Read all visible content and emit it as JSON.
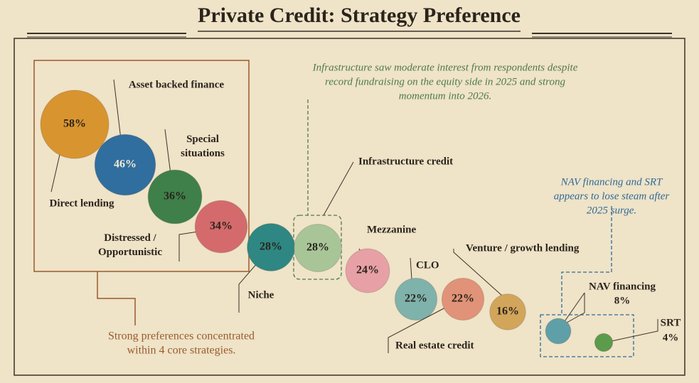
{
  "chart_data": {
    "type": "bubble",
    "title": "Private Credit: Strategy Preference",
    "categories": [
      "Direct lending",
      "Asset backed finance",
      "Special situations",
      "Distressed / Opportunistic",
      "Niche",
      "Infrastructure credit",
      "Mezzanine",
      "CLO",
      "Real estate credit",
      "Venture / growth lending",
      "NAV financing",
      "SRT"
    ],
    "values": [
      58,
      46,
      36,
      34,
      28,
      28,
      24,
      22,
      22,
      16,
      8,
      4
    ],
    "value_labels": [
      "58%",
      "46%",
      "36%",
      "34%",
      "28%",
      "28%",
      "24%",
      "22%",
      "22%",
      "16%",
      "8%",
      "4%"
    ],
    "colors": [
      "#d8942f",
      "#2f6e9e",
      "#3e7f4a",
      "#d46a6c",
      "#2e8782",
      "#a8c598",
      "#e6a0a6",
      "#7eb2ab",
      "#e09378",
      "#d2a55b",
      "#5f9fa8",
      "#5c9a4c"
    ],
    "annotations": [
      [
        "Infrastructure saw moderate interest from respondents despite",
        "record fundraising on the equity side in 2025 and strong",
        "momentum into 2026."
      ],
      [
        "NAV financing and SRT",
        "appears to lose steam after",
        "2025 surge."
      ],
      [
        "Strong preferences concentrated",
        "within 4 core strategies."
      ]
    ],
    "annotation_colors": [
      "#4f7b4a",
      "#2f6a96",
      "#9a5b2c"
    ]
  }
}
